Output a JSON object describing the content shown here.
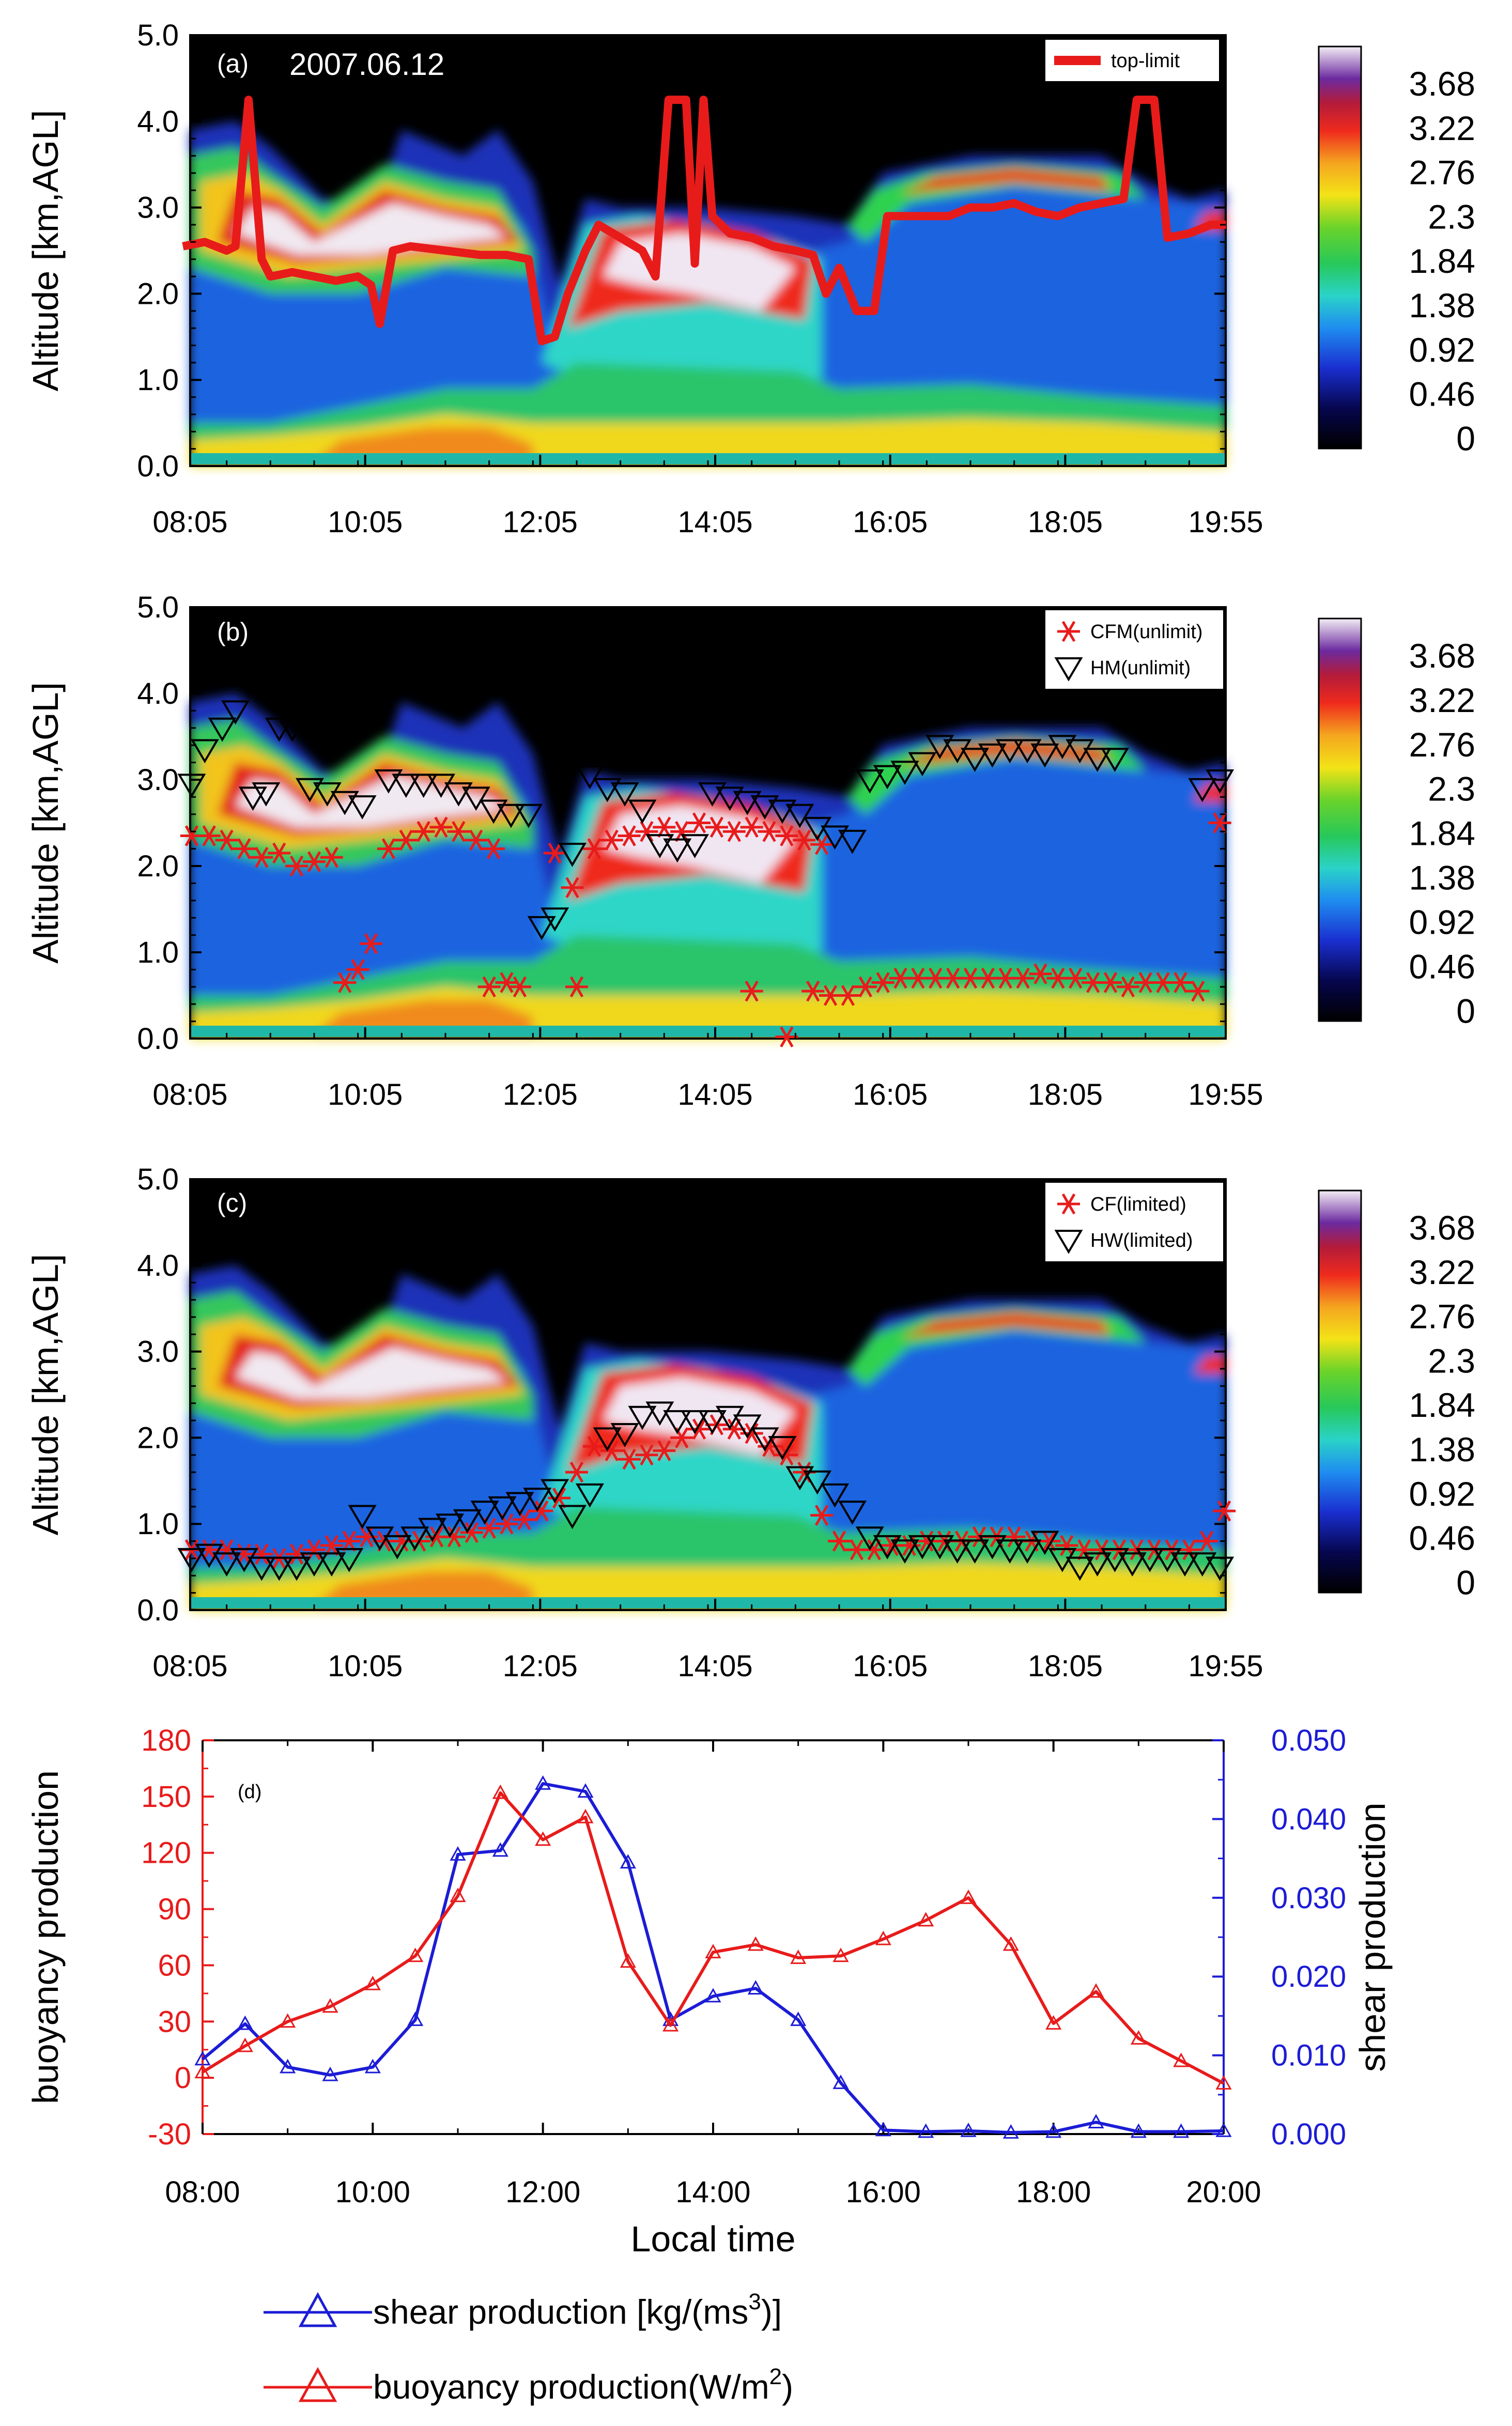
{
  "chart_data": [
    {
      "panel": "(a)",
      "type": "heatmap",
      "date": "2007.06.12",
      "ylabel": "Altitude [km,AGL]",
      "ylim": [
        0,
        5
      ],
      "yticks": [
        "0.0",
        "1.0",
        "2.0",
        "3.0",
        "4.0",
        "5.0"
      ],
      "xticks": [
        "08:05",
        "10:05",
        "12:05",
        "14:05",
        "16:05",
        "18:05",
        "19:55"
      ],
      "xrange": [
        8.083,
        19.917
      ],
      "colorbar": [
        "3.68",
        "3.22",
        "2.76",
        "2.3",
        "1.84",
        "1.38",
        "0.92",
        "0.46",
        "0"
      ],
      "series": [
        {
          "name": "top-limit",
          "color": "#e81b1b",
          "x": [
            8.0,
            8.25,
            8.5,
            8.6,
            8.75,
            8.9,
            9.0,
            9.25,
            9.5,
            9.75,
            10.0,
            10.15,
            10.25,
            10.4,
            10.6,
            11.0,
            11.4,
            11.7,
            11.95,
            12.1,
            12.25,
            12.4,
            12.6,
            12.75,
            13.0,
            13.25,
            13.4,
            13.55,
            13.75,
            13.85,
            13.95,
            14.05,
            14.25,
            14.5,
            14.75,
            15.0,
            15.2,
            15.35,
            15.5,
            15.7,
            15.9,
            16.05,
            16.25,
            16.5,
            16.75,
            17.0,
            17.25,
            17.5,
            17.75,
            18.0,
            18.25,
            18.5,
            18.75,
            18.9,
            19.1,
            19.25,
            19.5,
            19.75,
            19.92
          ],
          "y": [
            2.55,
            2.6,
            2.5,
            2.55,
            4.25,
            2.4,
            2.2,
            2.25,
            2.2,
            2.15,
            2.2,
            2.1,
            1.65,
            2.5,
            2.55,
            2.5,
            2.45,
            2.45,
            2.4,
            1.45,
            1.5,
            2.0,
            2.5,
            2.8,
            2.65,
            2.5,
            2.2,
            4.25,
            4.25,
            2.35,
            4.25,
            2.9,
            2.7,
            2.65,
            2.55,
            2.5,
            2.45,
            2.0,
            2.3,
            1.8,
            1.8,
            2.9,
            2.9,
            2.9,
            2.9,
            3.0,
            3.0,
            3.05,
            2.95,
            2.9,
            3.0,
            3.05,
            3.1,
            4.25,
            4.25,
            2.65,
            2.7,
            2.8,
            2.8
          ]
        }
      ]
    },
    {
      "panel": "(b)",
      "type": "heatmap",
      "ylabel": "Altitude [km,AGL]",
      "ylim": [
        0,
        5
      ],
      "yticks": [
        "0.0",
        "1.0",
        "2.0",
        "3.0",
        "4.0",
        "5.0"
      ],
      "xticks": [
        "08:05",
        "10:05",
        "12:05",
        "14:05",
        "16:05",
        "18:05",
        "19:55"
      ],
      "xrange": [
        8.083,
        19.917
      ],
      "colorbar": [
        "3.68",
        "3.22",
        "2.76",
        "2.3",
        "1.84",
        "1.38",
        "0.92",
        "0.46",
        "0"
      ],
      "series": [
        {
          "name": "CFM(unlimit)",
          "marker": "asterisk",
          "color": "#e81b1b",
          "x": [
            8.1,
            8.3,
            8.5,
            8.7,
            8.9,
            9.1,
            9.3,
            9.5,
            9.7,
            9.85,
            10.0,
            10.15,
            10.35,
            10.55,
            10.75,
            10.95,
            11.15,
            11.35,
            11.55,
            11.7,
            11.85,
            12.25,
            12.45,
            12.7,
            12.9,
            13.1,
            13.3,
            13.5,
            13.7,
            13.9,
            14.1,
            14.3,
            14.5,
            14.7,
            14.9,
            15.1,
            15.3,
            11.5,
            12.5,
            14.5,
            14.9,
            15.2,
            15.4,
            15.6,
            15.8,
            16.0,
            16.2,
            16.4,
            16.6,
            16.8,
            17.0,
            17.2,
            17.4,
            17.6,
            17.8,
            18.0,
            18.2,
            18.4,
            18.6,
            18.8,
            19.0,
            19.2,
            19.4,
            19.6,
            19.85
          ],
          "y": [
            2.35,
            2.35,
            2.3,
            2.2,
            2.1,
            2.15,
            2.0,
            2.05,
            2.1,
            0.65,
            0.8,
            1.1,
            2.2,
            2.3,
            2.4,
            2.45,
            2.4,
            2.3,
            2.2,
            0.65,
            0.6,
            2.15,
            1.75,
            2.2,
            2.3,
            2.35,
            2.4,
            2.45,
            2.4,
            2.5,
            2.45,
            2.4,
            2.45,
            2.4,
            2.35,
            2.3,
            2.25,
            0.6,
            0.6,
            0.55,
            0.02,
            0.55,
            0.5,
            0.5,
            0.6,
            0.65,
            0.7,
            0.7,
            0.7,
            0.7,
            0.7,
            0.7,
            0.7,
            0.7,
            0.75,
            0.7,
            0.7,
            0.65,
            0.65,
            0.6,
            0.65,
            0.65,
            0.65,
            0.55,
            2.5
          ]
        },
        {
          "name": "HM(unlimit)",
          "marker": "triangle-down",
          "color": "#000000",
          "x": [
            8.1,
            8.25,
            8.45,
            8.6,
            8.8,
            8.95,
            9.1,
            9.25,
            9.45,
            9.65,
            9.85,
            10.05,
            10.35,
            10.55,
            10.75,
            10.95,
            11.15,
            11.35,
            11.55,
            11.75,
            11.95,
            12.1,
            12.25,
            12.45,
            12.65,
            12.85,
            13.05,
            13.25,
            13.45,
            13.65,
            13.85,
            14.05,
            14.25,
            14.45,
            14.65,
            14.85,
            15.05,
            15.25,
            15.45,
            15.65,
            15.85,
            16.05,
            16.25,
            16.45,
            16.65,
            16.85,
            17.05,
            17.25,
            17.45,
            17.65,
            17.85,
            18.05,
            18.25,
            18.45,
            18.65,
            19.65,
            19.85
          ],
          "y": [
            2.95,
            3.35,
            3.6,
            3.8,
            2.8,
            2.85,
            3.6,
            3.6,
            2.9,
            2.85,
            2.75,
            2.7,
            3.0,
            2.95,
            2.95,
            2.95,
            2.85,
            2.8,
            2.65,
            2.6,
            2.6,
            1.3,
            1.4,
            2.15,
            3.05,
            2.9,
            2.85,
            2.65,
            2.25,
            2.2,
            2.25,
            2.85,
            2.8,
            2.75,
            2.7,
            2.65,
            2.6,
            2.45,
            2.35,
            2.3,
            3.0,
            3.05,
            3.1,
            3.2,
            3.4,
            3.35,
            3.25,
            3.3,
            3.35,
            3.35,
            3.3,
            3.4,
            3.35,
            3.25,
            3.25,
            2.9,
            3.0
          ]
        }
      ]
    },
    {
      "panel": "(c)",
      "type": "heatmap",
      "ylabel": "Altitude [km,AGL]",
      "ylim": [
        0,
        5
      ],
      "yticks": [
        "0.0",
        "1.0",
        "2.0",
        "3.0",
        "4.0",
        "5.0"
      ],
      "xticks": [
        "08:05",
        "10:05",
        "12:05",
        "14:05",
        "16:05",
        "18:05",
        "19:55"
      ],
      "xrange": [
        8.083,
        19.917
      ],
      "colorbar": [
        "3.68",
        "3.22",
        "2.76",
        "2.3",
        "1.84",
        "1.38",
        "0.92",
        "0.46",
        "0"
      ],
      "series": [
        {
          "name": "CF(limited)",
          "marker": "asterisk",
          "color": "#e81b1b",
          "x": [
            8.1,
            8.3,
            8.5,
            8.7,
            8.9,
            9.1,
            9.3,
            9.5,
            9.7,
            9.9,
            10.1,
            10.3,
            10.5,
            10.7,
            10.9,
            11.1,
            11.3,
            11.5,
            11.7,
            11.9,
            12.1,
            12.3,
            12.5,
            12.7,
            12.9,
            13.1,
            13.3,
            13.5,
            13.7,
            13.9,
            14.1,
            14.3,
            14.5,
            14.7,
            14.9,
            15.1,
            15.3,
            15.5,
            15.7,
            15.9,
            16.1,
            16.3,
            16.5,
            16.7,
            16.9,
            17.1,
            17.3,
            17.5,
            17.7,
            17.9,
            18.1,
            18.3,
            18.5,
            18.7,
            18.9,
            19.1,
            19.3,
            19.5,
            19.7,
            19.9
          ],
          "y": [
            0.7,
            0.7,
            0.7,
            0.65,
            0.65,
            0.6,
            0.65,
            0.7,
            0.75,
            0.8,
            0.85,
            0.8,
            0.8,
            0.8,
            0.85,
            0.85,
            0.9,
            0.95,
            1.0,
            1.05,
            1.15,
            1.3,
            1.6,
            1.9,
            1.85,
            1.75,
            1.8,
            1.85,
            2.0,
            2.1,
            2.15,
            2.1,
            2.05,
            1.9,
            1.8,
            1.6,
            1.1,
            0.8,
            0.7,
            0.7,
            0.75,
            0.75,
            0.8,
            0.8,
            0.8,
            0.85,
            0.85,
            0.85,
            0.8,
            0.8,
            0.75,
            0.7,
            0.7,
            0.7,
            0.7,
            0.7,
            0.7,
            0.7,
            0.8,
            1.15
          ]
        },
        {
          "name": "HW(limited)",
          "marker": "triangle-down",
          "color": "#000000",
          "x": [
            8.1,
            8.3,
            8.5,
            8.7,
            8.9,
            9.1,
            9.3,
            9.5,
            9.7,
            9.9,
            10.05,
            10.25,
            10.45,
            10.65,
            10.85,
            11.05,
            11.25,
            11.45,
            11.65,
            11.85,
            12.05,
            12.25,
            12.45,
            12.65,
            12.85,
            13.05,
            13.25,
            13.45,
            13.65,
            13.85,
            14.05,
            14.25,
            14.45,
            14.65,
            14.85,
            15.05,
            15.25,
            15.45,
            15.65,
            15.85,
            16.05,
            16.25,
            16.45,
            16.65,
            16.85,
            17.05,
            17.25,
            17.45,
            17.65,
            17.85,
            18.05,
            18.25,
            18.45,
            18.65,
            18.85,
            19.05,
            19.25,
            19.45,
            19.65,
            19.85
          ],
          "y": [
            0.6,
            0.65,
            0.55,
            0.6,
            0.5,
            0.5,
            0.5,
            0.55,
            0.55,
            0.6,
            1.1,
            0.85,
            0.75,
            0.85,
            0.95,
            1.0,
            1.05,
            1.15,
            1.2,
            1.25,
            1.3,
            1.4,
            1.1,
            1.35,
            2.0,
            2.05,
            2.25,
            2.3,
            2.2,
            2.2,
            2.2,
            2.25,
            2.15,
            2.0,
            1.9,
            1.55,
            1.5,
            1.35,
            1.15,
            0.85,
            0.75,
            0.7,
            0.75,
            0.75,
            0.7,
            0.7,
            0.75,
            0.7,
            0.7,
            0.8,
            0.6,
            0.5,
            0.55,
            0.6,
            0.55,
            0.6,
            0.6,
            0.55,
            0.55,
            0.5
          ]
        }
      ]
    },
    {
      "panel": "(d)",
      "type": "line",
      "xlabel": "Local time",
      "ylabel_left": "buoyancy production",
      "ylabel_right": "shear production",
      "ylim_left": [
        -30,
        180
      ],
      "ylim_right": [
        0,
        0.05
      ],
      "yticks_left": [
        "-30",
        "0",
        "30",
        "60",
        "90",
        "120",
        "150",
        "180"
      ],
      "yticks_right": [
        "0.000",
        "0.010",
        "0.020",
        "0.030",
        "0.040",
        "0.050"
      ],
      "xticks": [
        "08:00",
        "10:00",
        "12:00",
        "14:00",
        "16:00",
        "18:00",
        "20:00"
      ],
      "x": [
        8.0,
        8.5,
        9.0,
        9.5,
        10.0,
        10.5,
        11.0,
        11.5,
        12.0,
        12.5,
        13.0,
        13.5,
        14.0,
        14.5,
        15.0,
        15.5,
        16.0,
        16.5,
        17.0,
        17.5,
        18.0,
        18.5,
        19.0,
        19.5,
        20.0
      ],
      "series": [
        {
          "name": "shear production [kg/(ms3)]",
          "axis": "right",
          "color": "#1c1cd6",
          "values": [
            0.0095,
            0.014,
            0.0085,
            0.0075,
            0.0085,
            0.0145,
            0.0355,
            0.036,
            0.0445,
            0.0435,
            0.0345,
            0.0145,
            0.0175,
            0.0185,
            0.0145,
            0.0065,
            0.0005,
            0.0003,
            0.0004,
            0.0002,
            0.0003,
            0.0015,
            0.0003,
            0.0003,
            0.0004
          ]
        },
        {
          "name": "buoyancy production(W/m2)",
          "axis": "left",
          "color": "#e81b1b",
          "values": [
            3,
            17,
            30,
            38,
            50,
            65,
            97,
            152,
            127,
            139,
            62,
            28,
            67,
            71,
            64,
            65,
            74,
            84,
            96,
            71,
            29,
            46,
            21,
            9,
            -3
          ]
        }
      ],
      "legend": {
        "shear_text": "shear production [kg/(ms",
        "shear_sup": "3",
        "shear_tail": ")]",
        "buoy_text": "buoyancy production(W/m",
        "buoy_sup": "2",
        "buoy_tail": ")"
      }
    }
  ],
  "labels": {
    "panel_a": "(a)",
    "panel_b": "(b)",
    "panel_c": "(c)",
    "panel_d": "(d)",
    "date": "2007.06.12",
    "legend_a": "top-limit",
    "legend_b1": "CFM(unlimit)",
    "legend_b2": "HM(unlimit)",
    "legend_c1": "CF(limited)",
    "legend_c2": "HW(limited)",
    "ylabel_alt": "Altitude [km,AGL]",
    "ylabel_buoy": "buoyancy production",
    "ylabel_shear": "shear production",
    "xlabel": "Local time"
  },
  "colors": {
    "red": "#e81b1b",
    "blue": "#1c1cd6",
    "black": "#000000"
  }
}
